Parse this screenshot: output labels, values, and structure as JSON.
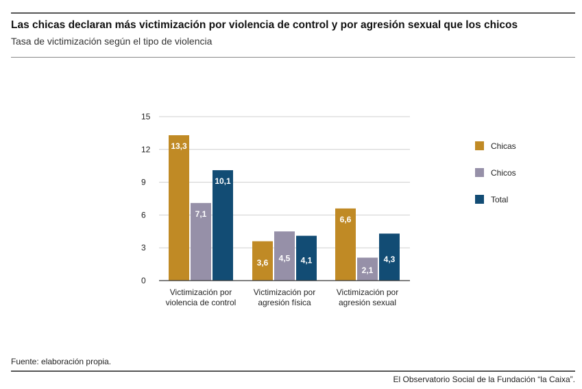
{
  "header": {
    "title": "Las chicas declaran más victimización por violencia de control y por agresión sexual que los chicos",
    "subtitle": "Tasa de victimización según el tipo de violencia"
  },
  "footer": {
    "source": "Fuente: elaboración propia.",
    "credit": "El Observatorio Social de la Fundación “la Caixa”."
  },
  "chart_data": {
    "type": "bar",
    "title": "Las chicas declaran más victimización por violencia de control y por agresión sexual que los chicos",
    "subtitle": "Tasa de victimización según el tipo de violencia",
    "categories": [
      [
        "Victimización por",
        "violencia de control"
      ],
      [
        "Victimización por",
        "agresión física"
      ],
      [
        "Victimización por",
        "agresión sexual"
      ]
    ],
    "series": [
      {
        "name": "Chicas",
        "color": "#C08A25",
        "values": [
          13.3,
          3.6,
          6.6
        ],
        "labels": [
          "13,3",
          "3,6",
          "6,6"
        ]
      },
      {
        "name": "Chicos",
        "color": "#9690A8",
        "values": [
          7.1,
          4.5,
          2.1
        ],
        "labels": [
          "7,1",
          "4,5",
          "2,1"
        ]
      },
      {
        "name": "Total",
        "color": "#124C74",
        "values": [
          10.1,
          4.1,
          4.3
        ],
        "labels": [
          "10,1",
          "4,1",
          "4,3"
        ]
      }
    ],
    "ylim": [
      0,
      15
    ],
    "yticks": [
      0,
      3,
      6,
      9,
      12,
      15
    ],
    "grid": true,
    "legend": "right",
    "xlabel": "",
    "ylabel": ""
  }
}
